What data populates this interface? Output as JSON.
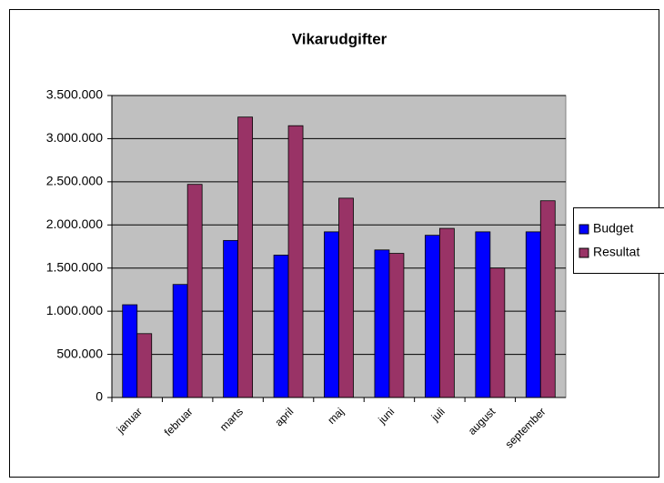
{
  "chart_data": {
    "type": "bar",
    "title": "Vikarudgifter",
    "categories": [
      "januar",
      "februar",
      "marts",
      "april",
      "maj",
      "juni",
      "juli",
      "august",
      "september"
    ],
    "series": [
      {
        "name": "Budget",
        "color": "#0000ff",
        "values": [
          1075000,
          1310000,
          1820000,
          1650000,
          1920000,
          1710000,
          1880000,
          1920000,
          1920000
        ]
      },
      {
        "name": "Resultat",
        "color": "#993366",
        "values": [
          740000,
          2470000,
          3250000,
          3150000,
          2310000,
          1670000,
          1960000,
          1500000,
          2280000
        ]
      }
    ],
    "ylim": [
      0,
      3500000
    ],
    "yticks": [
      0,
      {
        "value": 500000,
        "label": "500.000"
      },
      {
        "value": 1000000,
        "label": "1.000.000"
      },
      {
        "value": 1500000,
        "label": "1.500.000"
      },
      {
        "value": 2000000,
        "label": "2.000.000"
      },
      {
        "value": 2500000,
        "label": "2.500.000"
      },
      {
        "value": 3000000,
        "label": "3.000.000"
      },
      {
        "value": 3500000,
        "label": "3.500.000"
      }
    ],
    "grid": true,
    "plot_background": "#c0c0c0",
    "legend": "right"
  }
}
